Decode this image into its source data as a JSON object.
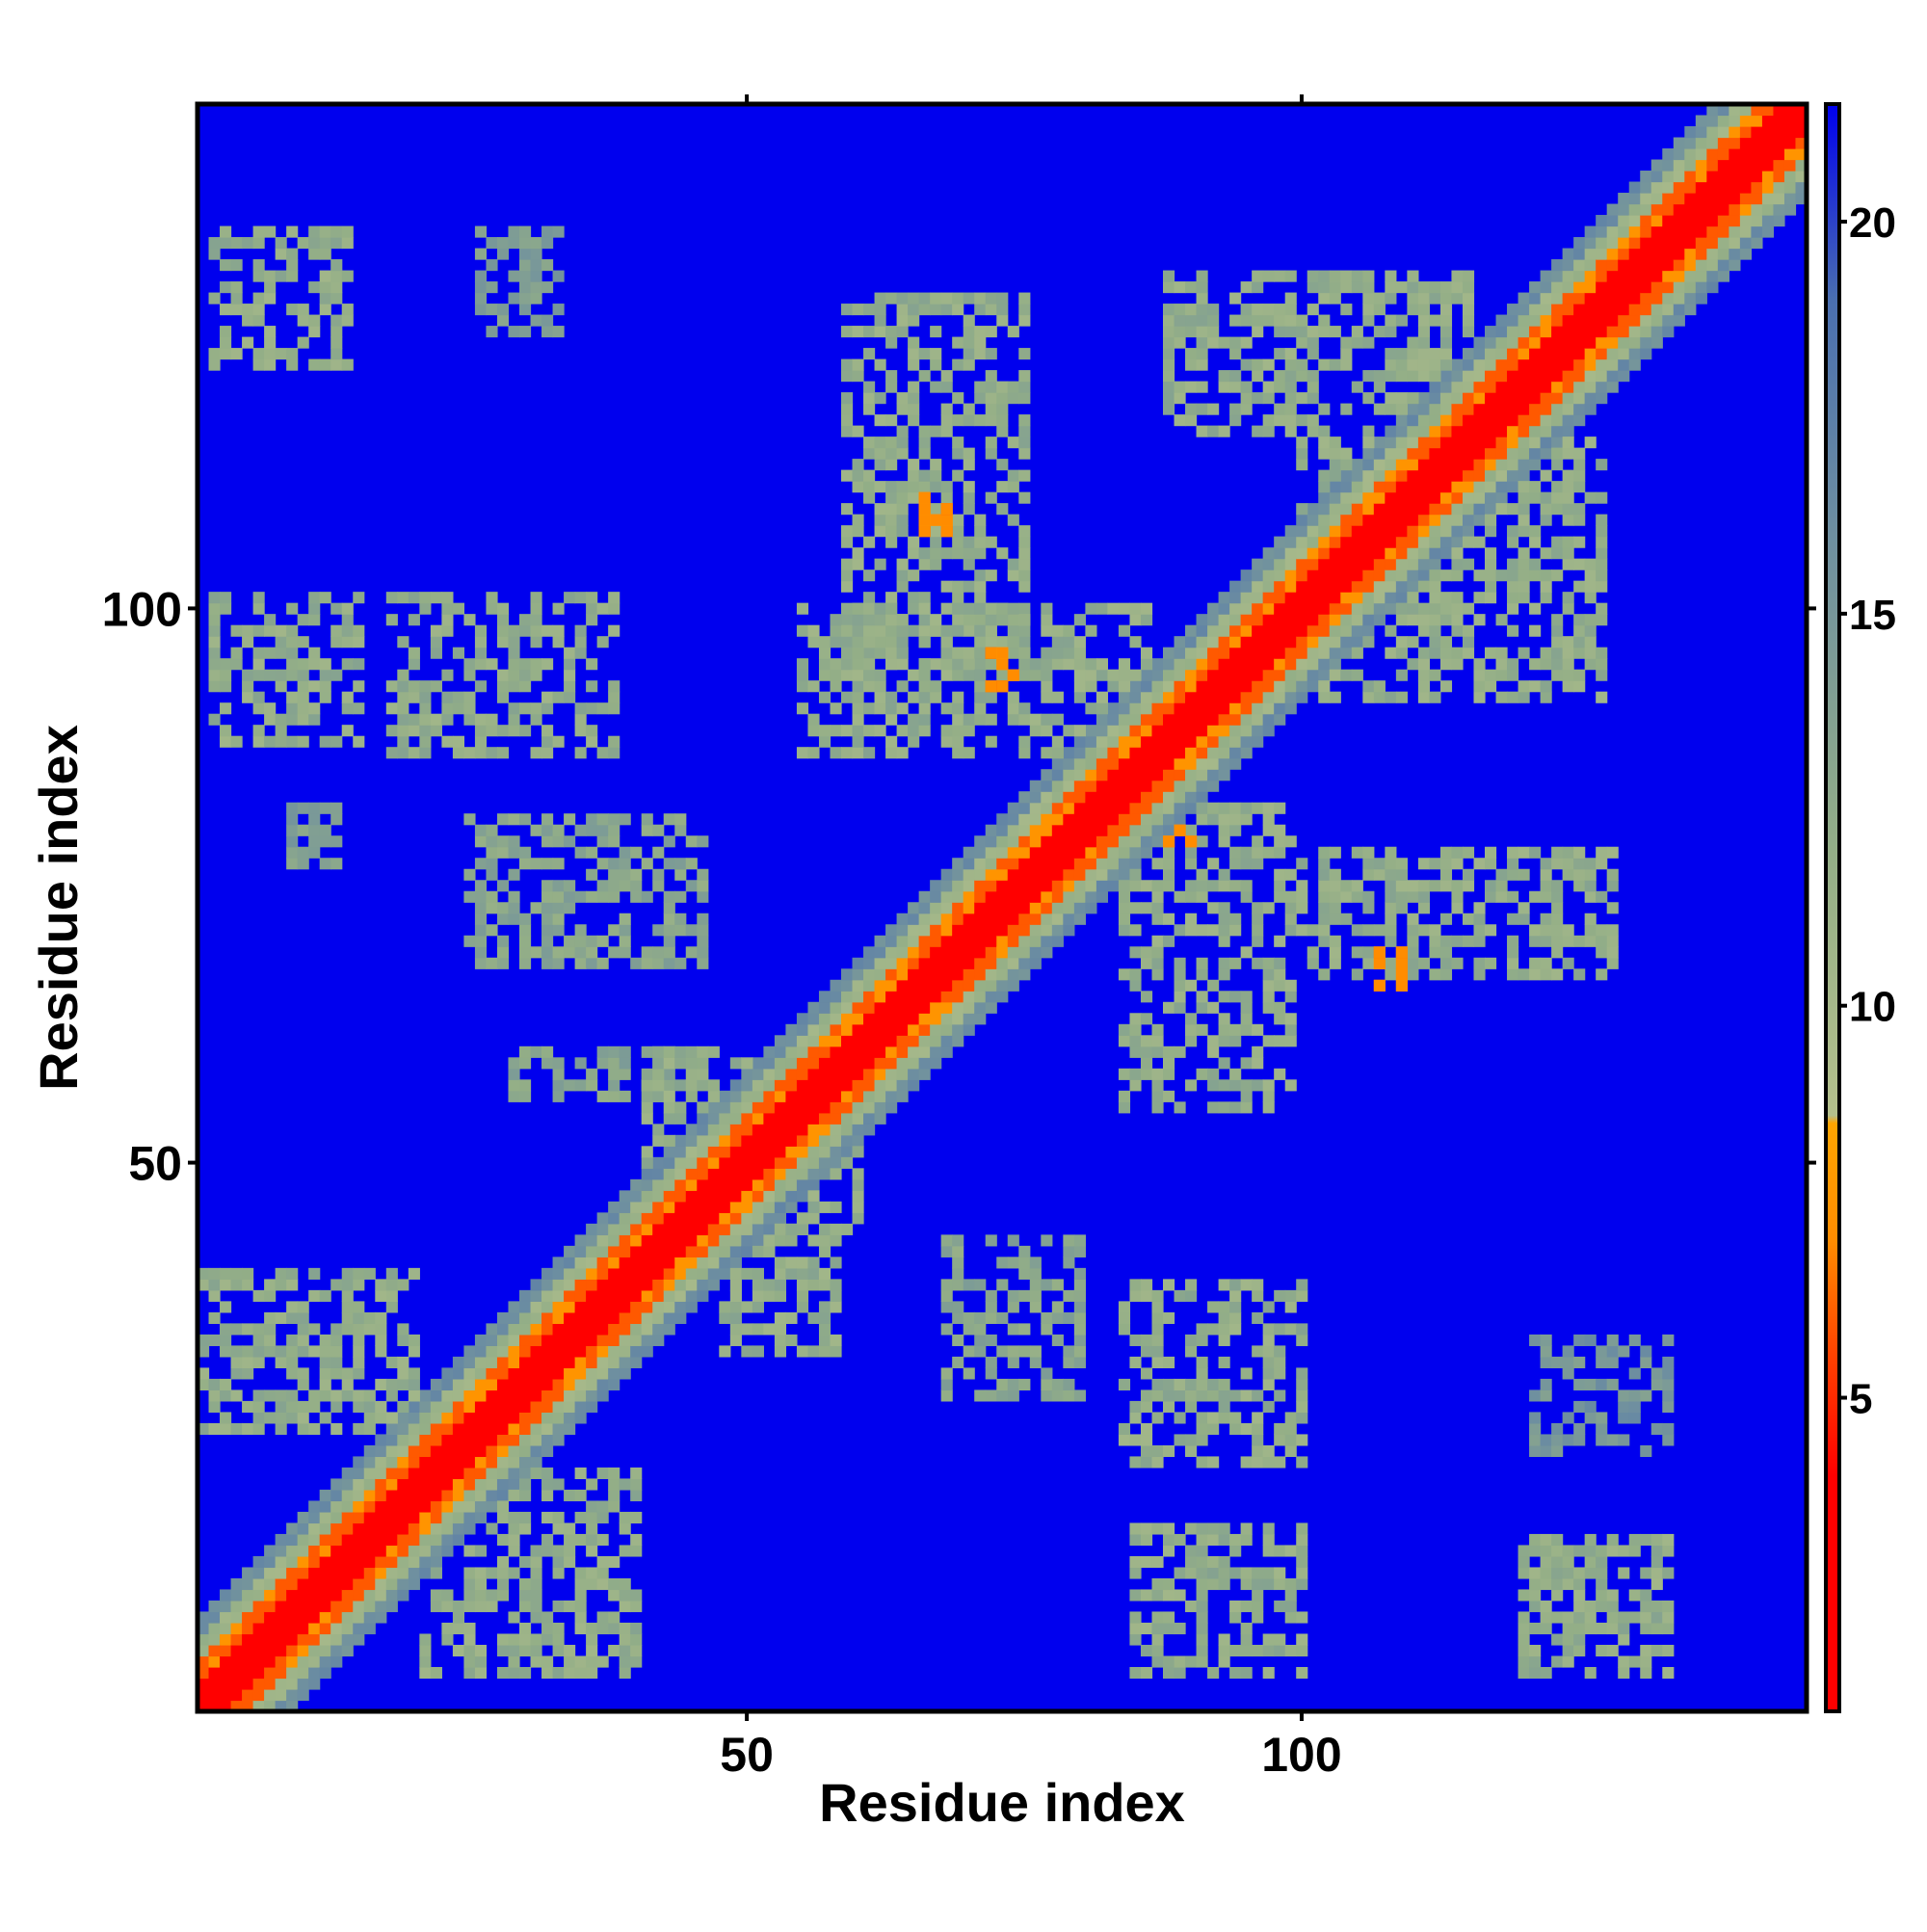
{
  "chart_data": {
    "type": "heatmap",
    "title": "",
    "xlabel": "Residue index",
    "ylabel": "Residue index",
    "x_range": [
      1,
      145
    ],
    "y_range": [
      1,
      145
    ],
    "x_ticks": [
      50,
      100
    ],
    "x_tick_labels": [
      "50",
      "100"
    ],
    "y_ticks": [
      50,
      100
    ],
    "y_tick_labels": [
      "50",
      "100"
    ],
    "colorbar": {
      "range": [
        1,
        21.5
      ],
      "ticks": [
        5,
        10,
        15,
        20
      ],
      "tick_labels": [
        "5",
        "10",
        "15",
        "20"
      ],
      "stops": [
        {
          "value": 1,
          "color": "#ff0000"
        },
        {
          "value": 4,
          "color": "#ff0000"
        },
        {
          "value": 5.5,
          "color": "#ff4000"
        },
        {
          "value": 7,
          "color": "#ff8c00"
        },
        {
          "value": 8.5,
          "color": "#ffa500"
        },
        {
          "value": 8.6,
          "color": "#b4c08c"
        },
        {
          "value": 12,
          "color": "#93ae87"
        },
        {
          "value": 16,
          "color": "#6e8fa0"
        },
        {
          "value": 19,
          "color": "#4a6fb0"
        },
        {
          "value": 21.5,
          "color": "#0000ee"
        }
      ]
    },
    "background_color": "#0000ee",
    "diagonal_band": {
      "description_values": {
        "core": 1.5,
        "inner": 6,
        "outer": 10,
        "edge": 15
      }
    },
    "contact_blocks": [
      {
        "x": [
          2,
          14
        ],
        "y": [
          122,
          134
        ],
        "value": 12
      },
      {
        "x": [
          26,
          33
        ],
        "y": [
          125,
          134
        ],
        "value": 14
      },
      {
        "x": [
          2,
          15
        ],
        "y": [
          88,
          101
        ],
        "value": 12
      },
      {
        "x": [
          18,
          38
        ],
        "y": [
          87,
          101
        ],
        "value": 12
      },
      {
        "x": [
          9,
          13
        ],
        "y": [
          77,
          82
        ],
        "value": 14
      },
      {
        "x": [
          25,
          46
        ],
        "y": [
          68,
          81
        ],
        "value": 13
      },
      {
        "x": [
          29,
          43
        ],
        "y": [
          56,
          60
        ],
        "value": 13
      },
      {
        "x": [
          1,
          20
        ],
        "y": [
          26,
          40
        ],
        "value": 12
      },
      {
        "x": [
          21,
          40
        ],
        "y": [
          4,
          22
        ],
        "value": 12
      },
      {
        "x": [
          59,
          75
        ],
        "y": [
          95,
          128
        ],
        "value": 12
      },
      {
        "x": [
          66,
          68
        ],
        "y": [
          107,
          110
        ],
        "value": 7
      },
      {
        "x": [
          55,
          86
        ],
        "y": [
          87,
          100
        ],
        "value": 12
      },
      {
        "x": [
          72,
          74
        ],
        "y": [
          93,
          96
        ],
        "value": 7
      },
      {
        "x": [
          88,
          115
        ],
        "y": [
          116,
          130
        ],
        "value": 12
      },
      {
        "x": [
          100,
          127
        ],
        "y": [
          92,
          115
        ],
        "value": 12
      },
      {
        "x": [
          84,
          99
        ],
        "y": [
          55,
          82
        ],
        "value": 12
      },
      {
        "x": [
          88,
          90
        ],
        "y": [
          79,
          82
        ],
        "value": 7
      },
      {
        "x": [
          100,
          128
        ],
        "y": [
          67,
          78
        ],
        "value": 12
      },
      {
        "x": [
          107,
          109
        ],
        "y": [
          66,
          69
        ],
        "value": 7
      },
      {
        "x": [
          41,
          60
        ],
        "y": [
          44,
          60
        ],
        "value": 12
      },
      {
        "x": [
          48,
          58
        ],
        "y": [
          33,
          46
        ],
        "value": 12
      },
      {
        "x": [
          68,
          80
        ],
        "y": [
          29,
          43
        ],
        "value": 13
      },
      {
        "x": [
          84,
          100
        ],
        "y": [
          23,
          39
        ],
        "value": 12
      },
      {
        "x": [
          85,
          100
        ],
        "y": [
          4,
          17
        ],
        "value": 12
      },
      {
        "x": [
          120,
          133
        ],
        "y": [
          4,
          16
        ],
        "value": 12
      },
      {
        "x": [
          121,
          133
        ],
        "y": [
          24,
          34
        ],
        "value": 15
      }
    ]
  }
}
